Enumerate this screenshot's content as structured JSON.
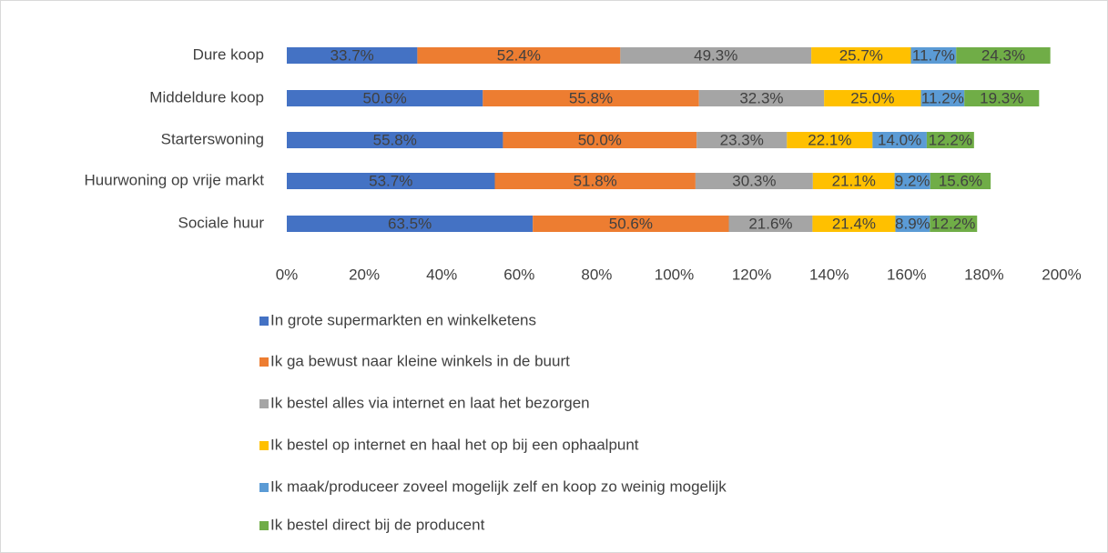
{
  "chart_data": {
    "type": "stacked-bar",
    "orientation": "horizontal",
    "categories": [
      "Dure koop",
      "Middeldure koop",
      "Starterswoning",
      "Huurwoning op vrije markt",
      "Sociale huur"
    ],
    "series": [
      {
        "name": "In grote supermarkten en winkelketens",
        "color": "#4472c4",
        "values": [
          33.7,
          50.6,
          55.8,
          53.7,
          63.5
        ],
        "value_labels": [
          "33.7%",
          "50.6%",
          "55.8%",
          "53.7%",
          "63.5%"
        ]
      },
      {
        "name": "Ik ga bewust naar kleine winkels in de buurt",
        "color": "#ed7d31",
        "values": [
          52.4,
          55.8,
          50.0,
          51.8,
          50.6
        ],
        "value_labels": [
          "52.4%",
          "55.8%",
          "50.0%",
          "51.8%",
          "50.6%"
        ]
      },
      {
        "name": "Ik bestel alles via internet en laat het bezorgen",
        "color": "#a5a5a5",
        "values": [
          49.3,
          32.3,
          23.3,
          30.3,
          21.6
        ],
        "value_labels": [
          "49.3%",
          "32.3%",
          "23.3%",
          "30.3%",
          "21.6%"
        ]
      },
      {
        "name": "Ik bestel op internet en haal het op bij een ophaalpunt",
        "color": "#ffc000",
        "values": [
          25.7,
          25.0,
          22.1,
          21.1,
          21.4
        ],
        "value_labels": [
          "25.7%",
          "25.0%",
          "22.1%",
          "21.1%",
          "21.4%"
        ]
      },
      {
        "name": "Ik maak/produceer zoveel mogelijk zelf en koop zo weinig mogelijk",
        "color": "#5b9bd5",
        "values": [
          11.7,
          11.2,
          14.0,
          9.2,
          8.9
        ],
        "value_labels": [
          "11.7%",
          "11.2%",
          "14.0%",
          "9.2%",
          "8.9%"
        ]
      },
      {
        "name": "Ik bestel direct bij de producent",
        "color": "#70ad47",
        "values": [
          24.3,
          19.3,
          12.2,
          15.6,
          12.2
        ],
        "value_labels": [
          "24.3%",
          "19.3%",
          "12.2%",
          "15.6%",
          "12.2%"
        ]
      }
    ],
    "xlim": [
      0,
      200
    ],
    "xticks": [
      {
        "value": 0,
        "label": "0%"
      },
      {
        "value": 20,
        "label": "20%"
      },
      {
        "value": 40,
        "label": "40%"
      },
      {
        "value": 60,
        "label": "60%"
      },
      {
        "value": 80,
        "label": "80%"
      },
      {
        "value": 100,
        "label": "100%"
      },
      {
        "value": 120,
        "label": "120%"
      },
      {
        "value": 140,
        "label": "140%"
      },
      {
        "value": 160,
        "label": "160%"
      },
      {
        "value": 180,
        "label": "180%"
      },
      {
        "value": 200,
        "label": "200%"
      }
    ],
    "legend": "bottom"
  }
}
